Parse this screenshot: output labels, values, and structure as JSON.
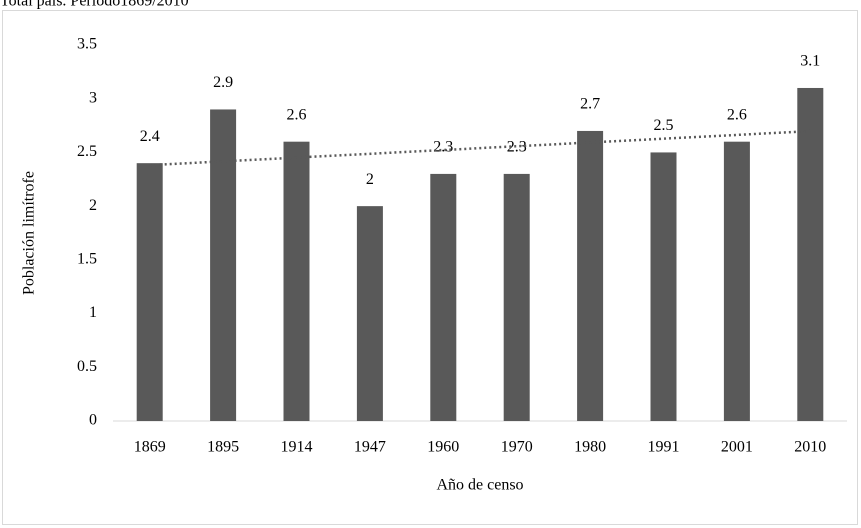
{
  "chart_data": {
    "type": "bar",
    "title": "Total país. Período1869/2010",
    "x_label": "Año de censo",
    "y_label": "Población limítrofe",
    "categories": [
      "1869",
      "1895",
      "1914",
      "1947",
      "1960",
      "1970",
      "1980",
      "1991",
      "2001",
      "2010"
    ],
    "values": [
      2.4,
      2.9,
      2.6,
      2,
      2.3,
      2.3,
      2.7,
      2.5,
      2.6,
      3.1
    ],
    "color": "#595959",
    "trendline": "linear",
    "trendline_color": "#595959",
    "ylim": [
      0,
      3.5
    ],
    "yticks": [
      0,
      0.5,
      1,
      1.5,
      2,
      2.5,
      3,
      3.5
    ],
    "grid": false
  }
}
